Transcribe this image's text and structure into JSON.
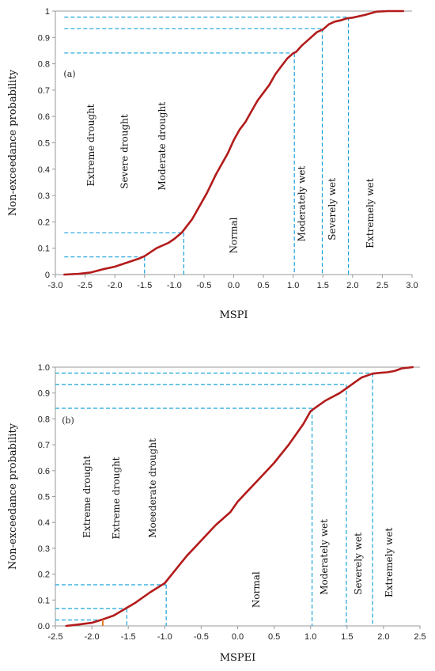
{
  "charts": [
    {
      "type": "line",
      "panel_label": "(a)",
      "xlabel": "MSPI",
      "ylabel": "Non-exceedance probability",
      "xlim": [
        -3.0,
        3.0
      ],
      "ylim": [
        0,
        1
      ],
      "x_ticks": [
        "-3.0",
        "-2.5",
        "-2.0",
        "-1.5",
        "-1.0",
        "-0.5",
        "0.0",
        "0.5",
        "1.0",
        "1.5",
        "2.0",
        "2.5",
        "3.0"
      ],
      "y_ticks": [
        "0",
        "0.1",
        "0.2",
        "0.3",
        "0.4",
        "0.5",
        "0.6",
        "0.7",
        "0.8",
        "0.9",
        "1"
      ],
      "curve": {
        "x": [
          -2.85,
          -2.6,
          -2.4,
          -2.2,
          -2.0,
          -1.8,
          -1.6,
          -1.5,
          -1.3,
          -1.1,
          -1.0,
          -0.87,
          -0.7,
          -0.55,
          -0.45,
          -0.3,
          -0.2,
          -0.1,
          0.0,
          0.1,
          0.2,
          0.3,
          0.4,
          0.5,
          0.6,
          0.7,
          0.8,
          0.9,
          1.0,
          1.05,
          1.15,
          1.3,
          1.4,
          1.5,
          1.6,
          1.7,
          1.8,
          1.9,
          2.0,
          2.2,
          2.4,
          2.6,
          2.85
        ],
        "y": [
          0.0,
          0.003,
          0.008,
          0.02,
          0.03,
          0.045,
          0.06,
          0.07,
          0.1,
          0.12,
          0.135,
          0.16,
          0.21,
          0.27,
          0.31,
          0.38,
          0.42,
          0.46,
          0.51,
          0.55,
          0.58,
          0.62,
          0.66,
          0.69,
          0.72,
          0.76,
          0.79,
          0.82,
          0.84,
          0.845,
          0.87,
          0.9,
          0.92,
          0.93,
          0.95,
          0.96,
          0.965,
          0.972,
          0.975,
          0.985,
          0.998,
          1.0,
          1.0
        ]
      },
      "thresholds": [
        {
          "x": -1.5,
          "y": 0.067
        },
        {
          "x": -0.84,
          "y": 0.159
        },
        {
          "x": 1.02,
          "y": 0.841
        },
        {
          "x": 1.49,
          "y": 0.933
        },
        {
          "x": 1.93,
          "y": 0.977
        }
      ],
      "guide_start_x": -2.85,
      "categories": [
        {
          "label": "Extreme drought",
          "x": -2.35,
          "y": 0.335
        },
        {
          "label": "Severe drought",
          "x": -1.78,
          "y": 0.325
        },
        {
          "label": "Moderate drought",
          "x": -1.15,
          "y": 0.32
        },
        {
          "label": "Normal",
          "x": 0.05,
          "y": 0.08
        },
        {
          "label": "Moderately wet",
          "x": 1.2,
          "y": 0.125
        },
        {
          "label": "Severely wet",
          "x": 1.71,
          "y": 0.13
        },
        {
          "label": "Extremely wet",
          "x": 2.35,
          "y": 0.1
        }
      ]
    },
    {
      "type": "line",
      "panel_label": "(b)",
      "xlabel": "MSPEI",
      "ylabel": "Non-exceedance probability",
      "xlim": [
        -2.5,
        2.5
      ],
      "ylim": [
        0,
        1
      ],
      "x_ticks": [
        "-2.5",
        "-2.0",
        "-1.5",
        "-1.0",
        "-0.5",
        "0.0",
        "0.5",
        "1.0",
        "1.5",
        "2.0",
        "2.5"
      ],
      "y_ticks": [
        "0.0",
        "0.1",
        "0.2",
        "0.3",
        "0.4",
        "0.5",
        "0.6",
        "0.7",
        "0.8",
        "0.9",
        "1.0"
      ],
      "curve": {
        "x": [
          -2.35,
          -2.2,
          -2.0,
          -1.85,
          -1.7,
          -1.55,
          -1.4,
          -1.2,
          -1.0,
          -0.9,
          -0.7,
          -0.5,
          -0.3,
          -0.1,
          0.0,
          0.1,
          0.3,
          0.5,
          0.7,
          0.9,
          1.0,
          1.2,
          1.4,
          1.5,
          1.6,
          1.7,
          1.8,
          1.85,
          1.95,
          2.05,
          2.15,
          2.25,
          2.4
        ],
        "y": [
          0.0,
          0.005,
          0.012,
          0.025,
          0.04,
          0.065,
          0.09,
          0.13,
          0.165,
          0.2,
          0.27,
          0.33,
          0.39,
          0.44,
          0.48,
          0.51,
          0.57,
          0.63,
          0.7,
          0.78,
          0.83,
          0.87,
          0.9,
          0.92,
          0.94,
          0.96,
          0.97,
          0.975,
          0.978,
          0.98,
          0.985,
          0.995,
          1.0
        ]
      },
      "thresholds": [
        {
          "x": -1.85,
          "y": 0.023
        },
        {
          "x": -1.52,
          "y": 0.067
        },
        {
          "x": -0.98,
          "y": 0.159
        },
        {
          "x": 1.02,
          "y": 0.841
        },
        {
          "x": 1.49,
          "y": 0.933
        },
        {
          "x": 1.85,
          "y": 0.977
        }
      ],
      "guide_start_x": -2.5,
      "categories": [
        {
          "label": "Extreme drought",
          "x": -2.02,
          "y": 0.34
        },
        {
          "label": "Extreme drought",
          "x": -1.62,
          "y": 0.335
        },
        {
          "label": "Moeederate drought",
          "x": -1.12,
          "y": 0.34
        },
        {
          "label": "Normal",
          "x": 0.3,
          "y": 0.07
        },
        {
          "label": "Moderately wet",
          "x": 1.23,
          "y": 0.12
        },
        {
          "label": "Severely wet",
          "x": 1.7,
          "y": 0.12
        },
        {
          "label": "Extremely wet",
          "x": 2.12,
          "y": 0.11
        }
      ]
    }
  ],
  "colors": {
    "curve": "#b31b1b",
    "guide": "#1aa3d9",
    "axis": "#9a9a9a",
    "marker": "#e07a2a"
  }
}
